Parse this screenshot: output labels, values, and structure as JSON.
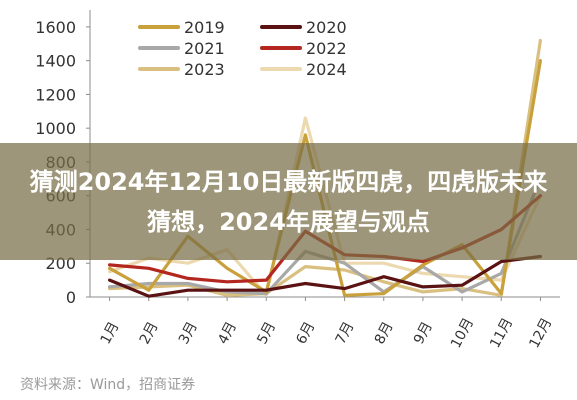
{
  "chart_data": {
    "type": "line",
    "categories": [
      "1月",
      "2月",
      "3月",
      "4月",
      "5月",
      "6月",
      "7月",
      "8月",
      "9月",
      "10月",
      "11月",
      "12月"
    ],
    "yticks": [
      0,
      200,
      400,
      600,
      800,
      1000,
      1200,
      1400,
      1600
    ],
    "ylim": [
      0,
      1700
    ],
    "grid": false,
    "legend_position": "top",
    "series": [
      {
        "name": "2019",
        "color": "#c9a13c",
        "values": [
          170,
          40,
          360,
          170,
          30,
          960,
          10,
          20,
          190,
          310,
          20,
          1400
        ]
      },
      {
        "name": "2020",
        "color": "#5a1212",
        "values": [
          100,
          5,
          40,
          40,
          40,
          80,
          50,
          120,
          60,
          70,
          210,
          240
        ]
      },
      {
        "name": "2021",
        "color": "#a8a8a8",
        "values": [
          60,
          80,
          80,
          30,
          20,
          270,
          200,
          30,
          180,
          30,
          140,
          700
        ]
      },
      {
        "name": "2022",
        "color": "#b3271f",
        "values": [
          190,
          170,
          110,
          90,
          100,
          390,
          250,
          240,
          210,
          290,
          400,
          600
        ]
      },
      {
        "name": "2023",
        "color": "#d9c080",
        "values": [
          50,
          60,
          70,
          10,
          20,
          180,
          160,
          90,
          30,
          50,
          10,
          1520
        ]
      },
      {
        "name": "2024",
        "color": "#ecd9b0",
        "values": [
          150,
          230,
          200,
          280,
          10,
          1060,
          200,
          200,
          140,
          120,
          100,
          600
        ]
      }
    ]
  },
  "banner": {
    "title": "猜测2024年12月10日最新版四虎，四虎版未来猜想，2024年展望与观点"
  },
  "source": "资料来源：Wind，招商证券"
}
